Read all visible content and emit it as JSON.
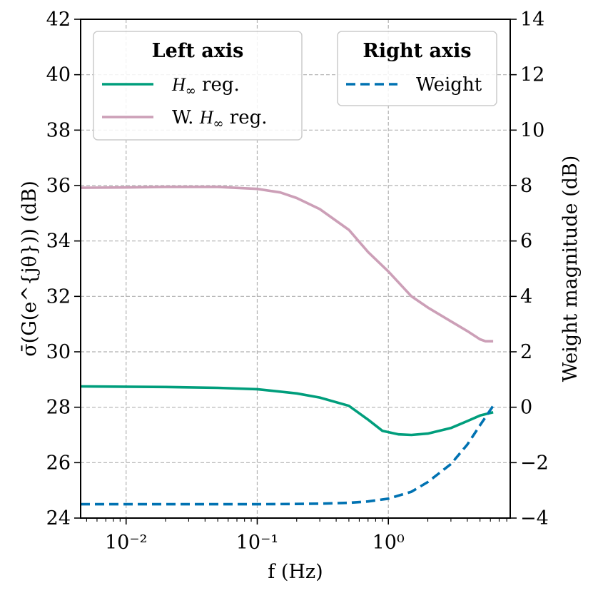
{
  "chart_data": {
    "type": "line",
    "xscale": "log",
    "xlabel": "f (Hz)",
    "ylabel": "σ̄(G(e^{jθ})) (dB)",
    "ylabel_right": "Weight magnitude (dB)",
    "xlim": [
      0.0045,
      8.5
    ],
    "ylim": [
      24,
      42
    ],
    "ylim_right": [
      -4,
      14
    ],
    "grid": true,
    "x_ticks": [
      {
        "value": 0.01,
        "label": "10⁻²"
      },
      {
        "value": 0.1,
        "label": "10⁻¹"
      },
      {
        "value": 1,
        "label": "10⁰"
      }
    ],
    "y_ticks": [
      {
        "value": 24,
        "label": "24"
      },
      {
        "value": 26,
        "label": "26"
      },
      {
        "value": 28,
        "label": "28"
      },
      {
        "value": 30,
        "label": "30"
      },
      {
        "value": 32,
        "label": "32"
      },
      {
        "value": 34,
        "label": "34"
      },
      {
        "value": 36,
        "label": "36"
      },
      {
        "value": 38,
        "label": "38"
      },
      {
        "value": 40,
        "label": "40"
      },
      {
        "value": 42,
        "label": "42"
      }
    ],
    "y_ticks_right": [
      {
        "value": -4,
        "label": "−4"
      },
      {
        "value": -2,
        "label": "−2"
      },
      {
        "value": 0,
        "label": "0"
      },
      {
        "value": 2,
        "label": "2"
      },
      {
        "value": 4,
        "label": "4"
      },
      {
        "value": 6,
        "label": "6"
      },
      {
        "value": 8,
        "label": "8"
      },
      {
        "value": 10,
        "label": "10"
      },
      {
        "value": 12,
        "label": "12"
      },
      {
        "value": 14,
        "label": "14"
      }
    ],
    "legends": [
      {
        "title": "Left axis",
        "placement": "upper-left",
        "entries": [
          {
            "series": "hinf",
            "label_prefix": "",
            "label_suffix": " reg."
          },
          {
            "series": "whinf",
            "label_prefix": "W. ",
            "label_suffix": " reg."
          }
        ]
      },
      {
        "title": "Right axis",
        "placement": "upper-right",
        "entries": [
          {
            "series": "weight",
            "label_prefix": "",
            "label_suffix": "Weight"
          }
        ]
      }
    ],
    "series": [
      {
        "id": "hinf",
        "name": "H∞ reg.",
        "axis": "left",
        "color": "#009e7c",
        "dash": "solid",
        "x": [
          0.0045,
          0.01,
          0.02,
          0.05,
          0.1,
          0.2,
          0.3,
          0.5,
          0.7,
          0.9,
          1.2,
          1.5,
          2,
          3,
          4,
          5,
          6.3
        ],
        "y": [
          28.75,
          28.74,
          28.73,
          28.7,
          28.65,
          28.5,
          28.35,
          28.05,
          27.55,
          27.15,
          27.02,
          27.0,
          27.05,
          27.25,
          27.5,
          27.7,
          27.82
        ]
      },
      {
        "id": "whinf",
        "name": "W. H∞ reg.",
        "axis": "left",
        "color": "#cc9fb7",
        "dash": "solid",
        "x": [
          0.0045,
          0.01,
          0.02,
          0.05,
          0.1,
          0.15,
          0.2,
          0.3,
          0.5,
          0.7,
          1,
          1.5,
          2,
          3,
          4,
          5,
          5.5,
          6.3
        ],
        "y": [
          35.92,
          35.93,
          35.95,
          35.95,
          35.88,
          35.75,
          35.55,
          35.15,
          34.4,
          33.6,
          32.9,
          32.0,
          31.6,
          31.1,
          30.75,
          30.45,
          30.38,
          30.38
        ]
      },
      {
        "id": "weight",
        "name": "Weight",
        "axis": "right",
        "color": "#0072b2",
        "dash": "dashed",
        "x": [
          0.0045,
          0.01,
          0.05,
          0.1,
          0.2,
          0.3,
          0.5,
          0.7,
          1,
          1.5,
          2,
          3,
          4,
          5,
          6.3
        ],
        "y": [
          -3.5,
          -3.5,
          -3.5,
          -3.5,
          -3.49,
          -3.48,
          -3.45,
          -3.4,
          -3.3,
          -3.05,
          -2.7,
          -2.05,
          -1.35,
          -0.65,
          0.05
        ]
      }
    ]
  }
}
